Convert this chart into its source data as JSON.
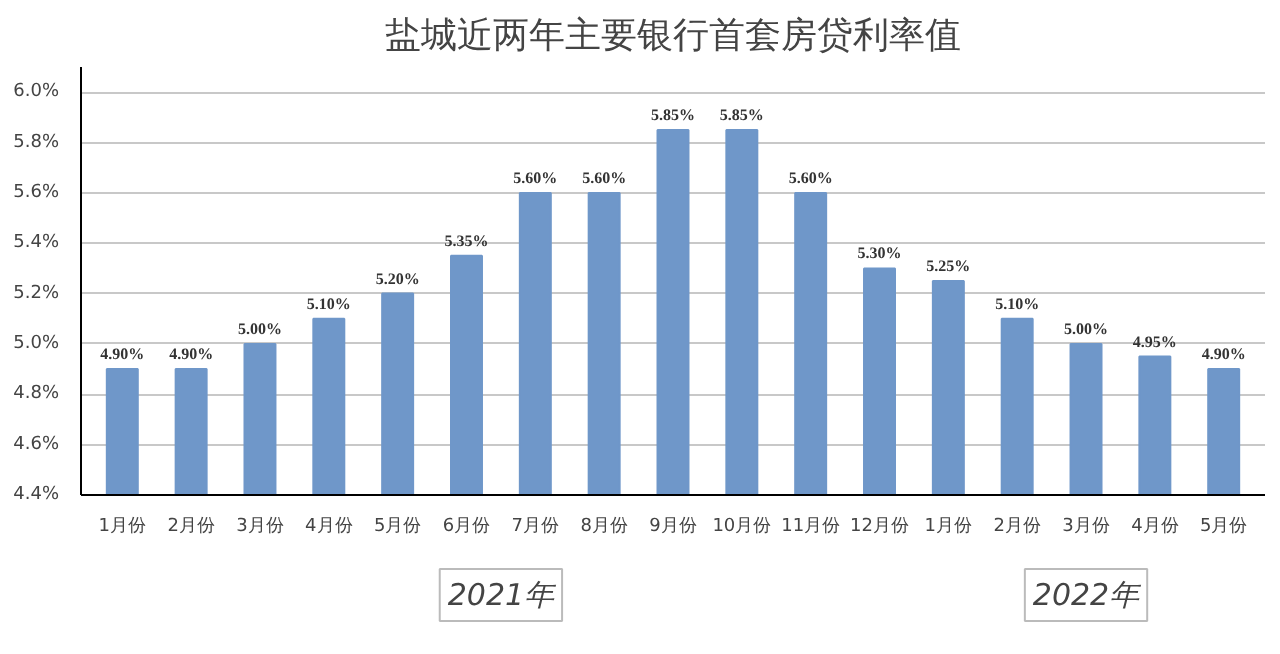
{
  "chart_data": {
    "type": "bar",
    "title": "盐城近两年主要银行首套房贷利率值",
    "categories": [
      "1月份",
      "2月份",
      "3月份",
      "4月份",
      "5月份",
      "6月份",
      "7月份",
      "8月份",
      "9月份",
      "10月份",
      "11月份",
      "12月份",
      "1月份",
      "2月份",
      "3月份",
      "4月份",
      "5月份"
    ],
    "values": [
      4.9,
      4.9,
      5.0,
      5.1,
      5.2,
      5.35,
      5.6,
      5.6,
      5.85,
      5.85,
      5.6,
      5.3,
      5.25,
      5.1,
      5.0,
      4.95,
      4.9
    ],
    "value_labels": [
      "4.90%",
      "4.90%",
      "5.00%",
      "5.10%",
      "5.20%",
      "5.35%",
      "5.60%",
      "5.60%",
      "5.85%",
      "5.85%",
      "5.60%",
      "5.30%",
      "5.25%",
      "5.10%",
      "5.00%",
      "4.95%",
      "4.90%"
    ],
    "color": "#6f97c9",
    "ylim": [
      4.4,
      6.1
    ],
    "yticks": [
      {
        "value": 4.4,
        "label": "4.4%"
      },
      {
        "value": 4.6,
        "label": "4.6%"
      },
      {
        "value": 4.8,
        "label": "4.8%"
      },
      {
        "value": 5.0,
        "label": "5.0%"
      },
      {
        "value": 5.2,
        "label": "5.2%"
      },
      {
        "value": 5.4,
        "label": "5.4%"
      },
      {
        "value": 5.6,
        "label": "5.6%"
      },
      {
        "value": 5.8,
        "label": "5.8%"
      },
      {
        "value": 6.0,
        "label": "6.0%"
      }
    ],
    "grid": "y",
    "annotations": [
      "2021年",
      "2022年"
    ]
  }
}
